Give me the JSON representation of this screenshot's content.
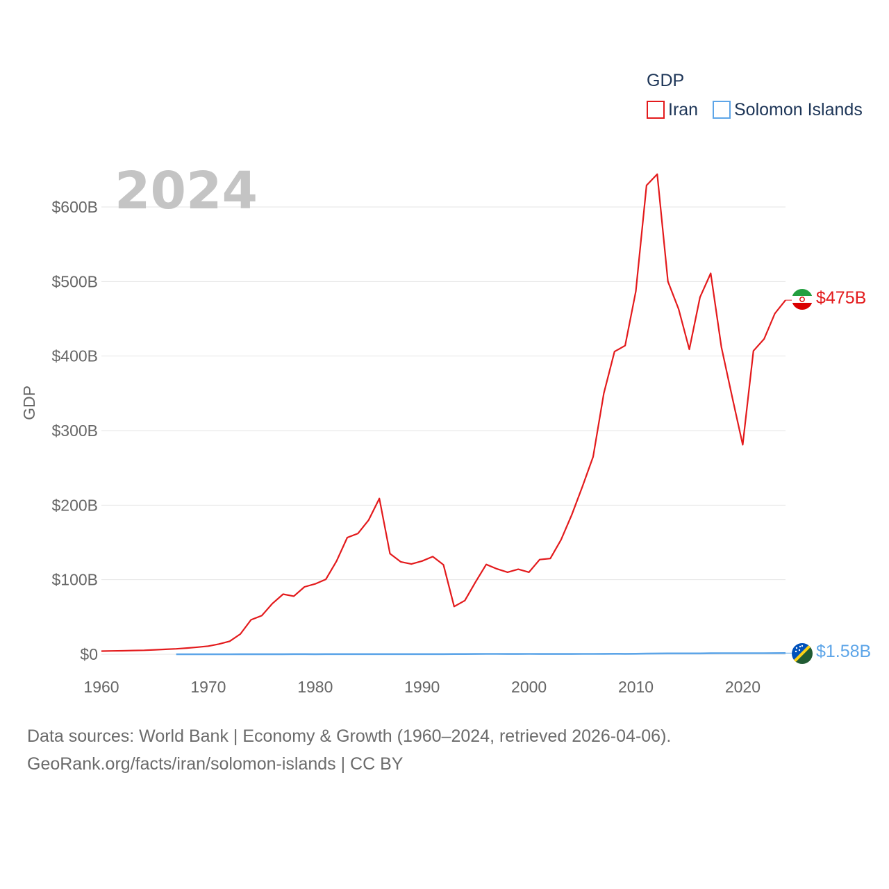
{
  "chart_data": {
    "type": "line",
    "title": "GDP",
    "year_label": "2024",
    "ylabel": "GDP",
    "xlabel": "",
    "xlim": [
      1960,
      2024
    ],
    "ylim": [
      0,
      650
    ],
    "x_ticks": [
      1960,
      1970,
      1980,
      1990,
      2000,
      2010,
      2020
    ],
    "y_ticks": [
      0,
      100,
      200,
      300,
      400,
      500,
      600
    ],
    "y_tick_labels": [
      "$0",
      "$100B",
      "$200B",
      "$300B",
      "$400B",
      "$500B",
      "$600B"
    ],
    "unit": "billion USD",
    "grid": true,
    "legend_position": "top-right",
    "series": [
      {
        "name": "Iran",
        "color": "#e31a1c",
        "end_label": "$475B",
        "flag": "iran-flag-icon",
        "x": [
          1960,
          1961,
          1962,
          1963,
          1964,
          1965,
          1966,
          1967,
          1968,
          1969,
          1970,
          1971,
          1972,
          1973,
          1974,
          1975,
          1976,
          1977,
          1978,
          1979,
          1980,
          1981,
          1982,
          1983,
          1984,
          1985,
          1986,
          1987,
          1988,
          1989,
          1990,
          1991,
          1992,
          1993,
          1994,
          1995,
          1996,
          1997,
          1998,
          1999,
          2000,
          2001,
          2002,
          2003,
          2004,
          2005,
          2006,
          2007,
          2008,
          2009,
          2010,
          2011,
          2012,
          2013,
          2014,
          2015,
          2016,
          2017,
          2018,
          2019,
          2020,
          2021,
          2022,
          2023,
          2024
        ],
        "values": [
          4.2,
          4.5,
          4.7,
          5.0,
          5.3,
          6.0,
          6.6,
          7.3,
          8.3,
          9.5,
          10.9,
          13.7,
          17.4,
          27.1,
          46.2,
          51.8,
          68.1,
          80.6,
          77.9,
          90.4,
          94.4,
          100.5,
          125.0,
          156.5,
          162.0,
          180.0,
          209.0,
          135.0,
          124.0,
          121.0,
          125.0,
          131.0,
          120.0,
          64.0,
          72.0,
          97.0,
          120.5,
          114.5,
          110.0,
          114.0,
          110.0,
          127.0,
          128.5,
          153.5,
          187.0,
          225.0,
          265.0,
          350.0,
          406.0,
          414.0,
          487.0,
          629.0,
          644.0,
          500.0,
          463.0,
          409.0,
          479.0,
          511.0,
          412.0,
          346.0,
          281.0,
          407.0,
          423.0,
          457.0,
          475.0
        ]
      },
      {
        "name": "Solomon Islands",
        "color": "#5da5e8",
        "end_label": "$1.58B",
        "flag": "solomon-islands-flag-icon",
        "x": [
          1967,
          1968,
          1969,
          1970,
          1971,
          1972,
          1973,
          1974,
          1975,
          1976,
          1977,
          1978,
          1979,
          1980,
          1981,
          1982,
          1983,
          1984,
          1985,
          1986,
          1987,
          1988,
          1989,
          1990,
          1991,
          1992,
          1993,
          1994,
          1995,
          1996,
          1997,
          1998,
          1999,
          2000,
          2001,
          2002,
          2003,
          2004,
          2005,
          2006,
          2007,
          2008,
          2009,
          2010,
          2011,
          2012,
          2013,
          2014,
          2015,
          2016,
          2017,
          2018,
          2019,
          2020,
          2021,
          2022,
          2023,
          2024
        ],
        "values": [
          0.03,
          0.03,
          0.03,
          0.04,
          0.04,
          0.04,
          0.05,
          0.07,
          0.08,
          0.1,
          0.12,
          0.16,
          0.2,
          0.12,
          0.15,
          0.16,
          0.17,
          0.19,
          0.17,
          0.14,
          0.15,
          0.18,
          0.18,
          0.17,
          0.2,
          0.22,
          0.25,
          0.3,
          0.38,
          0.42,
          0.45,
          0.38,
          0.4,
          0.43,
          0.4,
          0.33,
          0.34,
          0.37,
          0.42,
          0.48,
          0.55,
          0.61,
          0.6,
          0.68,
          0.85,
          1.0,
          1.1,
          1.16,
          1.13,
          1.16,
          1.26,
          1.38,
          1.42,
          1.39,
          1.42,
          1.39,
          1.48,
          1.58
        ]
      }
    ]
  },
  "legend": {
    "title": "GDP",
    "items": [
      "Iran",
      "Solomon Islands"
    ]
  },
  "footer": {
    "line1": "Data sources: World Bank | Economy & Growth (1960–2024, retrieved 2026-04-06).",
    "line2": "GeoRank.org/facts/iran/solomon-islands | CC BY"
  }
}
